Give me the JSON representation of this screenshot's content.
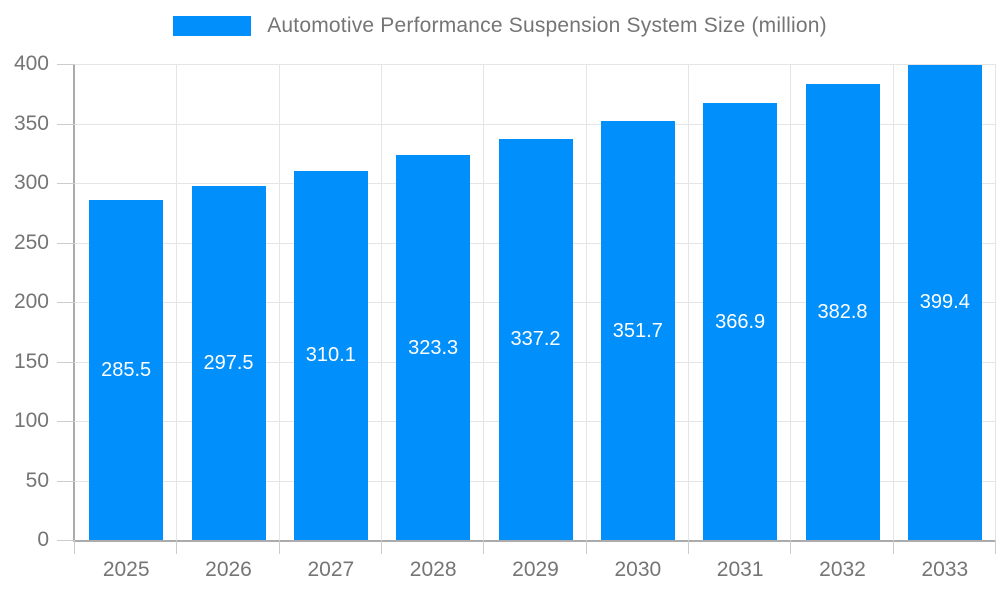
{
  "chart_data": {
    "type": "bar",
    "title": "Automotive Performance Suspension System Size (million)",
    "categories": [
      "2025",
      "2026",
      "2027",
      "2028",
      "2029",
      "2030",
      "2031",
      "2032",
      "2033"
    ],
    "values": [
      285.5,
      297.5,
      310.1,
      323.3,
      337.2,
      351.7,
      366.9,
      382.8,
      399.4
    ],
    "xlabel": "",
    "ylabel": "",
    "ylim": [
      0,
      400
    ],
    "yticks": [
      0,
      50,
      100,
      150,
      200,
      250,
      300,
      350,
      400
    ],
    "grid": "on",
    "legend_position": "top",
    "colors": {
      "bar": "#008FFB",
      "value_label": "#ffffff",
      "axis_text": "#757575",
      "grid_line": "#e5e5e5",
      "axis_line": "#ababab",
      "tick": "#cccccc"
    }
  }
}
